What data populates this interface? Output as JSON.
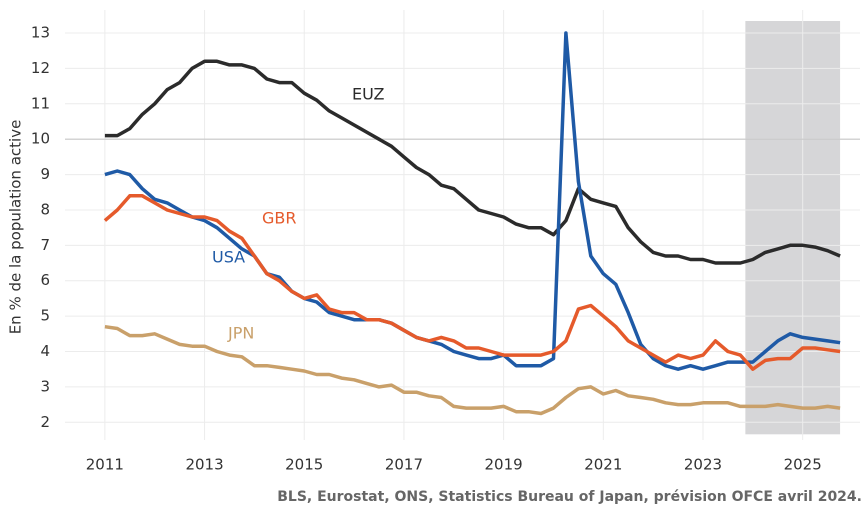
{
  "chart_data": {
    "type": "line",
    "y_label": "En % de la population active",
    "source": "BLS, Eurostat, ONS, Statistics Bureau of Japan, prévision OFCE avril 2024.",
    "x": [
      2011,
      2011.25,
      2011.5,
      2011.75,
      2012,
      2012.25,
      2012.5,
      2012.75,
      2013,
      2013.25,
      2013.5,
      2013.75,
      2014,
      2014.25,
      2014.5,
      2014.75,
      2015,
      2015.25,
      2015.5,
      2015.75,
      2016,
      2016.25,
      2016.5,
      2016.75,
      2017,
      2017.25,
      2017.5,
      2017.75,
      2018,
      2018.25,
      2018.5,
      2018.75,
      2019,
      2019.25,
      2019.5,
      2019.75,
      2020,
      2020.25,
      2020.5,
      2020.75,
      2021,
      2021.25,
      2021.5,
      2021.75,
      2022,
      2022.25,
      2022.5,
      2022.75,
      2023,
      2023.25,
      2023.5,
      2023.75,
      2024,
      2024.25,
      2024.5,
      2024.75,
      2025,
      2025.25,
      2025.5,
      2025.75
    ],
    "series": [
      {
        "name": "EUZ",
        "color": "#2b2b2b",
        "values": [
          10.1,
          10.1,
          10.3,
          10.7,
          11.0,
          11.4,
          11.6,
          12.0,
          12.2,
          12.2,
          12.1,
          12.1,
          12.0,
          11.7,
          11.6,
          11.6,
          11.3,
          11.1,
          10.8,
          10.6,
          10.4,
          10.2,
          10.0,
          9.8,
          9.5,
          9.2,
          9.0,
          8.7,
          8.6,
          8.3,
          8.0,
          7.9,
          7.8,
          7.6,
          7.5,
          7.5,
          7.3,
          7.7,
          8.6,
          8.3,
          8.2,
          8.1,
          7.5,
          7.1,
          6.8,
          6.7,
          6.7,
          6.6,
          6.6,
          6.5,
          6.5,
          6.5,
          6.6,
          6.8,
          6.9,
          7.0,
          7.0,
          6.95,
          6.85,
          6.7
        ]
      },
      {
        "name": "USA",
        "color": "#1f5aa6",
        "values": [
          9.0,
          9.1,
          9.0,
          8.6,
          8.3,
          8.2,
          8.0,
          7.8,
          7.7,
          7.5,
          7.2,
          6.9,
          6.7,
          6.2,
          6.1,
          5.7,
          5.5,
          5.4,
          5.1,
          5.0,
          4.9,
          4.9,
          4.9,
          4.8,
          4.6,
          4.4,
          4.3,
          4.2,
          4.0,
          3.9,
          3.8,
          3.8,
          3.9,
          3.6,
          3.6,
          3.6,
          3.8,
          13.0,
          8.8,
          6.7,
          6.2,
          5.9,
          5.1,
          4.2,
          3.8,
          3.6,
          3.5,
          3.6,
          3.5,
          3.6,
          3.7,
          3.7,
          3.7,
          4.0,
          4.3,
          4.5,
          4.4,
          4.35,
          4.3,
          4.25
        ]
      },
      {
        "name": "GBR",
        "color": "#e55a2b",
        "values": [
          7.7,
          8.0,
          8.4,
          8.4,
          8.2,
          8.0,
          7.9,
          7.8,
          7.8,
          7.7,
          7.4,
          7.2,
          6.7,
          6.2,
          6.0,
          5.7,
          5.5,
          5.6,
          5.2,
          5.1,
          5.1,
          4.9,
          4.9,
          4.8,
          4.6,
          4.4,
          4.3,
          4.4,
          4.3,
          4.1,
          4.1,
          4.0,
          3.9,
          3.9,
          3.9,
          3.9,
          4.0,
          4.3,
          5.2,
          5.3,
          5.0,
          4.7,
          4.3,
          4.1,
          3.9,
          3.7,
          3.9,
          3.8,
          3.9,
          4.3,
          4.0,
          3.9,
          3.5,
          3.75,
          3.8,
          3.8,
          4.1,
          4.1,
          4.05,
          4.0
        ]
      },
      {
        "name": "JPN",
        "color": "#c9a06a",
        "values": [
          4.7,
          4.65,
          4.45,
          4.45,
          4.5,
          4.35,
          4.2,
          4.15,
          4.15,
          4.0,
          3.9,
          3.85,
          3.6,
          3.6,
          3.55,
          3.5,
          3.45,
          3.35,
          3.35,
          3.25,
          3.2,
          3.1,
          3.0,
          3.05,
          2.85,
          2.85,
          2.75,
          2.7,
          2.45,
          2.4,
          2.4,
          2.4,
          2.45,
          2.3,
          2.3,
          2.25,
          2.4,
          2.7,
          2.95,
          3.0,
          2.8,
          2.9,
          2.75,
          2.7,
          2.65,
          2.55,
          2.5,
          2.5,
          2.55,
          2.55,
          2.55,
          2.45,
          2.45,
          2.45,
          2.5,
          2.45,
          2.4,
          2.4,
          2.45,
          2.4
        ]
      }
    ],
    "xlim": [
      2010.2,
      2026.15
    ],
    "xticks": [
      2011,
      2013,
      2015,
      2017,
      2019,
      2021,
      2023,
      2025
    ],
    "ylim": [
      1.5,
      13.65
    ],
    "yticks": [
      2,
      3,
      4,
      5,
      6,
      7,
      8,
      9,
      10,
      11,
      12,
      13
    ],
    "hline": 10,
    "shaded_region": [
      2023.85,
      2025.75
    ],
    "grid": true
  }
}
